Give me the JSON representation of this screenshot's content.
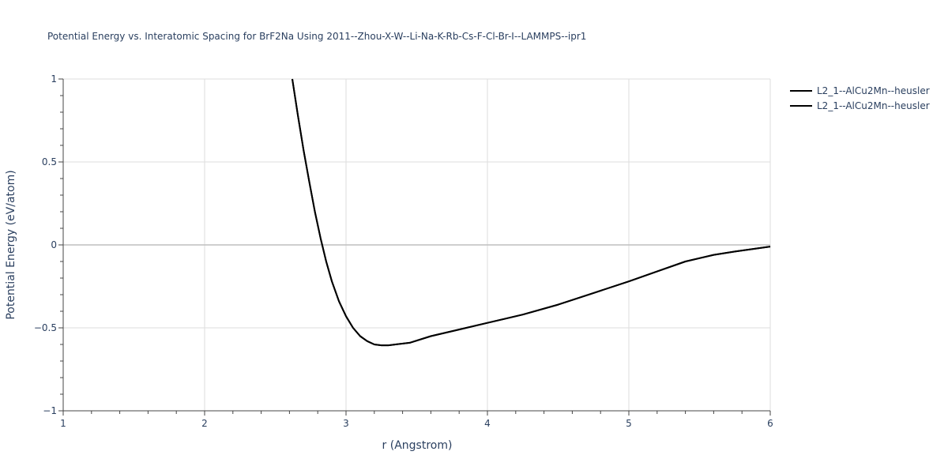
{
  "chart_data": {
    "type": "line",
    "title": "Potential Energy vs. Interatomic Spacing for BrF2Na Using 2011--Zhou-X-W--Li-Na-K-Rb-Cs-F-Cl-Br-I--LAMMPS--ipr1",
    "xlabel": "r (Angstrom)",
    "ylabel": "Potential Energy (eV/atom)",
    "xlim": [
      1,
      6
    ],
    "ylim": [
      -1,
      1
    ],
    "xticks": [
      1,
      2,
      3,
      4,
      5,
      6
    ],
    "yticks": [
      -1,
      -0.5,
      0,
      0.5,
      1
    ],
    "ytick_labels": [
      "−1",
      "−0.5",
      "0",
      "0.5",
      "1"
    ],
    "grid": true,
    "legend_position": "top-right",
    "line_color": "#000000",
    "series": [
      {
        "name": "L2_1--AlCu2Mn--heusler",
        "x": [
          2.62,
          2.66,
          2.7,
          2.74,
          2.78,
          2.82,
          2.86,
          2.9,
          2.95,
          3.0,
          3.05,
          3.1,
          3.15,
          3.2,
          3.25,
          3.3,
          3.35,
          3.45,
          3.6,
          3.8,
          4.0,
          4.25,
          4.5,
          4.75,
          5.0,
          5.2,
          5.4,
          5.6,
          5.75,
          6.0
        ],
        "y": [
          1.0,
          0.78,
          0.57,
          0.38,
          0.2,
          0.04,
          -0.1,
          -0.22,
          -0.34,
          -0.43,
          -0.5,
          -0.55,
          -0.58,
          -0.6,
          -0.605,
          -0.605,
          -0.6,
          -0.59,
          -0.55,
          -0.51,
          -0.47,
          -0.42,
          -0.36,
          -0.29,
          -0.22,
          -0.16,
          -0.1,
          -0.06,
          -0.04,
          -0.01
        ]
      },
      {
        "name": "L2_1--AlCu2Mn--heusler",
        "x": [
          2.62,
          2.66,
          2.7,
          2.74,
          2.78,
          2.82,
          2.86,
          2.9,
          2.95,
          3.0,
          3.05,
          3.1,
          3.15,
          3.2,
          3.25,
          3.3,
          3.35,
          3.45,
          3.6,
          3.8,
          4.0,
          4.25,
          4.5,
          4.75,
          5.0,
          5.2,
          5.4,
          5.6,
          5.75,
          6.0
        ],
        "y": [
          1.0,
          0.78,
          0.57,
          0.38,
          0.2,
          0.04,
          -0.1,
          -0.22,
          -0.34,
          -0.43,
          -0.5,
          -0.55,
          -0.58,
          -0.6,
          -0.605,
          -0.605,
          -0.6,
          -0.59,
          -0.55,
          -0.51,
          -0.47,
          -0.42,
          -0.36,
          -0.29,
          -0.22,
          -0.16,
          -0.1,
          -0.06,
          -0.04,
          -0.01
        ]
      }
    ]
  }
}
